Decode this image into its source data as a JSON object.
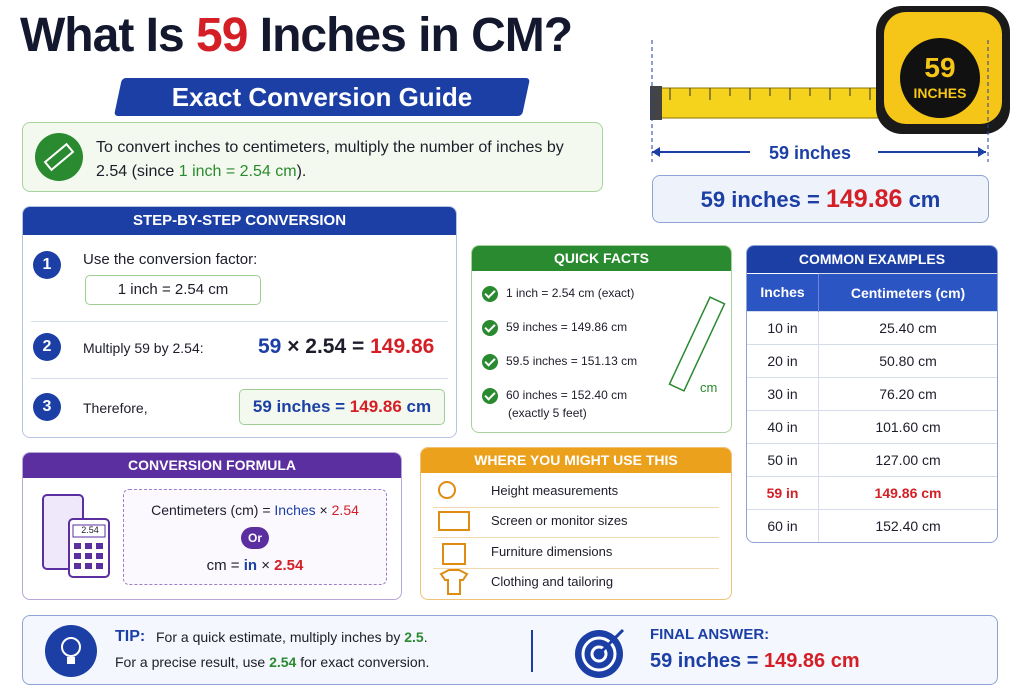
{
  "header": {
    "title": [
      "What Is ",
      "59",
      " Inches in CM?"
    ],
    "subtitle": "Exact Conversion Guide"
  },
  "intro": {
    "text": [
      "To convert inches to centimeters, multiply the number of inches by 2.54 (since ",
      "1 inch = 2.54 cm",
      ")."
    ]
  },
  "tape": {
    "badge_number": "59",
    "badge_unit": "INCHES",
    "measure_label": "59 inches",
    "result": [
      "59 inches = ",
      "149.86",
      " cm"
    ]
  },
  "steps": {
    "title": "STEP-BY-STEP CONVERSION",
    "items": [
      {
        "number": "1",
        "text": "Use the conversion factor:",
        "box": "1 inch = 2.54 cm"
      },
      {
        "number": "2",
        "text": "Multiply 59 by 2.54:",
        "expr": [
          "59",
          " × 2.54 = ",
          "149.86"
        ]
      },
      {
        "number": "3",
        "text": "Therefore,",
        "expr": [
          "59",
          " inches = ",
          "149.86",
          " cm"
        ]
      }
    ]
  },
  "quick_facts": {
    "title": "QUICK FACTS",
    "items": [
      "1 inch = 2.54 cm (exact)",
      "59 inches = 149.86 cm",
      "59.5 inches = 151.13 cm",
      "60 inches = 152.40 cm"
    ],
    "note": "(exactly 5 feet)",
    "ruler_label": "cm"
  },
  "common_examples": {
    "title": "COMMON EXAMPLES",
    "columns": [
      "Inches",
      "Centimeters (cm)"
    ],
    "rows": [
      [
        "10 in",
        "25.40 cm"
      ],
      [
        "20 in",
        "50.80 cm"
      ],
      [
        "30 in",
        "76.20 cm"
      ],
      [
        "40 in",
        "101.60 cm"
      ],
      [
        "50 in",
        "127.00 cm"
      ],
      [
        "59 in",
        "149.86 cm"
      ],
      [
        "60 in",
        "152.40 cm"
      ]
    ]
  },
  "formula": {
    "title": "CONVERSION FORMULA",
    "calc_display": "2.54",
    "line1": [
      "Centimeters (cm) = ",
      "Inches",
      " × ",
      "2.54"
    ],
    "or": "Or",
    "line2": [
      "cm = ",
      "in",
      " × ",
      "2.54"
    ]
  },
  "uses": {
    "title": "WHERE YOU MIGHT USE THIS",
    "items": [
      "Height measurements",
      "Screen or monitor sizes",
      "Furniture dimensions",
      "Clothing and tailoring"
    ]
  },
  "tip": {
    "label": "TIP:",
    "line1": [
      "For a quick estimate, multiply inches by ",
      "2.5",
      "."
    ],
    "line2": [
      "For a precise result, use ",
      "2.54",
      " for exact conversion."
    ]
  },
  "final": {
    "label": "FINAL ANSWER:",
    "text": [
      "59 inches",
      " = ",
      "149.86 cm"
    ]
  }
}
